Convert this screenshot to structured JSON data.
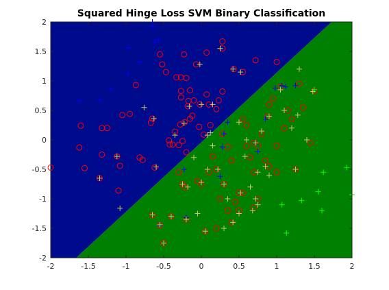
{
  "chart_data": {
    "type": "scatter",
    "title": "Squared Hinge Loss SVM Binary Classification",
    "xlabel": "",
    "ylabel": "",
    "xlim": [
      -2,
      2
    ],
    "ylim": [
      -2,
      2
    ],
    "x_ticks": [
      "-2",
      "-1.5",
      "-1",
      "-0.5",
      "0",
      "0.5",
      "1",
      "1.5",
      "2"
    ],
    "y_ticks": [
      "-2",
      "-1.5",
      "-1",
      "-0.5",
      "0",
      "0.5",
      "1",
      "1.5",
      "2"
    ],
    "grid": false,
    "decision_boundary": {
      "points": [
        [
          -1.66,
          -2
        ],
        [
          1.73,
          2
        ]
      ]
    },
    "region_colors": {
      "upper_left": "#000a8c",
      "lower_right": "#008000"
    },
    "marker_colors": {
      "circle": "#ff0000",
      "plus_class_a": "#0000ff",
      "plus_class_b": "#00ff00",
      "plus_class_b_misclassified": "#c8c864"
    },
    "series": [
      {
        "marker": "circle",
        "points": [
          [
            -2.0,
            -0.47
          ],
          [
            -1.6,
            0.24
          ],
          [
            -1.62,
            -0.13
          ],
          [
            -1.55,
            -0.48
          ],
          [
            -1.35,
            -0.65
          ],
          [
            -1.32,
            0.2
          ],
          [
            -1.32,
            -0.25
          ],
          [
            -1.25,
            0.2
          ],
          [
            -1.12,
            -0.28
          ],
          [
            -1.1,
            -0.86
          ],
          [
            -1.08,
            -0.44
          ],
          [
            -1.05,
            0.42
          ],
          [
            -0.95,
            0.44
          ],
          [
            -0.87,
            0.93
          ],
          [
            -0.82,
            -0.3
          ],
          [
            -0.78,
            -0.34
          ],
          [
            -0.67,
            0.29
          ],
          [
            -0.65,
            0.36
          ],
          [
            -0.62,
            -0.47
          ],
          [
            -0.55,
            1.45
          ],
          [
            -0.52,
            1.28
          ],
          [
            -0.47,
            1.15
          ],
          [
            -0.43,
            -0.01
          ],
          [
            -0.42,
            -0.08
          ],
          [
            -0.38,
            -0.08
          ],
          [
            -0.33,
            1.06
          ],
          [
            -0.35,
            0.14
          ],
          [
            -0.3,
            -0.09
          ],
          [
            -0.28,
            0.26
          ],
          [
            -0.27,
            0.83
          ],
          [
            -0.27,
            1.06
          ],
          [
            -0.27,
            0.72
          ],
          [
            -0.25,
            -0.02
          ],
          [
            -0.23,
            1.45
          ],
          [
            -0.22,
            0.3
          ],
          [
            -0.2,
            -0.21
          ],
          [
            -0.2,
            1.05
          ],
          [
            -0.18,
            0.57
          ],
          [
            -0.17,
            0.66
          ],
          [
            -0.15,
            0.84
          ],
          [
            -0.15,
            0.36
          ],
          [
            -0.12,
            0.41
          ],
          [
            -0.1,
            0.67
          ],
          [
            -0.07,
            1.28
          ],
          [
            -0.03,
            0.22
          ],
          [
            -0.02,
            0.6
          ],
          [
            0.03,
            0.09
          ],
          [
            0.07,
            0.77
          ],
          [
            0.07,
            1.48
          ],
          [
            0.1,
            0.6
          ],
          [
            0.12,
            0.25
          ],
          [
            0.2,
            0.52
          ],
          [
            0.23,
            0.67
          ],
          [
            0.28,
            1.55
          ],
          [
            0.28,
            1.67
          ],
          [
            0.28,
            0.82
          ],
          [
            0.28,
            0.1
          ],
          [
            0.43,
            1.2
          ],
          [
            0.55,
            1.15
          ],
          [
            0.72,
            1.35
          ],
          [
            1.0,
            1.32
          ],
          [
            0.55,
            0.35
          ],
          [
            0.6,
            -0.1
          ],
          [
            0.7,
            -0.05
          ],
          [
            0.75,
            -0.1
          ],
          [
            0.8,
            0.1
          ],
          [
            0.88,
            0.4
          ],
          [
            0.95,
            0.7
          ],
          [
            1.05,
            0.9
          ],
          [
            1.15,
            0.5
          ],
          [
            1.3,
            0.95
          ],
          [
            1.5,
            0.83
          ],
          [
            1.45,
            -0.05
          ],
          [
            1.1,
            0.2
          ],
          [
            1.0,
            -0.1
          ],
          [
            0.9,
            -0.45
          ],
          [
            1.25,
            -0.5
          ],
          [
            0.7,
            -0.55
          ],
          [
            0.5,
            -0.9
          ],
          [
            0.3,
            -0.75
          ],
          [
            0.1,
            -0.55
          ],
          [
            -0.05,
            -0.7
          ],
          [
            -0.22,
            -0.8
          ],
          [
            -0.55,
            -1.45
          ],
          [
            -0.5,
            -1.75
          ],
          [
            -0.2,
            -1.35
          ],
          [
            0.05,
            -1.55
          ],
          [
            0.2,
            -1.5
          ],
          [
            0.4,
            -1.4
          ],
          [
            0.5,
            -1.2
          ],
          [
            0.7,
            -1.15
          ],
          [
            0.75,
            -1.0
          ],
          [
            0.35,
            -1.2
          ],
          [
            0.2,
            -0.5
          ],
          [
            0.4,
            -0.35
          ],
          [
            0.65,
            -0.3
          ],
          [
            0.85,
            -0.35
          ],
          [
            1.0,
            -0.55
          ],
          [
            0.55,
            -0.9
          ],
          [
            0.45,
            -1.05
          ],
          [
            0.0,
            -0.75
          ],
          [
            -0.25,
            -0.75
          ],
          [
            0.25,
            -1.0
          ],
          [
            0.35,
            -0.12
          ],
          [
            0.15,
            -0.28
          ],
          [
            0.9,
            0.6
          ],
          [
            1.2,
            0.35
          ],
          [
            1.35,
            0.55
          ],
          [
            0.6,
            0.25
          ],
          [
            -0.4,
            -1.3
          ],
          [
            -0.65,
            -1.28
          ],
          [
            -0.3,
            -0.55
          ]
        ]
      },
      {
        "marker": "plus",
        "name_color": "plus_class_a",
        "points": [
          [
            -1.62,
            0.66
          ],
          [
            -1.35,
            0.68
          ],
          [
            -1.2,
            0.86
          ],
          [
            -0.97,
            1.56
          ],
          [
            -0.98,
            1.12
          ],
          [
            -0.82,
            1.32
          ],
          [
            -0.62,
            1.66
          ],
          [
            -0.65,
            1.93
          ],
          [
            -0.65,
            2.0
          ],
          [
            -0.57,
            1.7
          ],
          [
            -0.2,
            -1.32
          ],
          [
            -0.23,
            -0.5
          ],
          [
            0.25,
            -0.62
          ],
          [
            0.28,
            -0.12
          ],
          [
            0.3,
            0.1
          ],
          [
            0.35,
            0.3
          ],
          [
            0.85,
            0.35
          ],
          [
            0.98,
            0.88
          ],
          [
            1.25,
            0.92
          ],
          [
            1.07,
            0.92
          ],
          [
            0.72,
            -0.05
          ],
          [
            0.75,
            -0.2
          ],
          [
            1.12,
            0.9
          ],
          [
            -0.55,
            -1.45
          ]
        ]
      },
      {
        "marker": "plus",
        "name_color": "plus_class_b",
        "points": [
          [
            1.93,
            -0.47
          ],
          [
            2.0,
            -0.93
          ],
          [
            1.62,
            -0.55
          ],
          [
            1.55,
            -0.88
          ],
          [
            1.6,
            -1.2
          ],
          [
            1.33,
            -1.03
          ],
          [
            1.07,
            -1.1
          ],
          [
            1.13,
            -1.58
          ],
          [
            1.5,
            0.85
          ]
        ]
      },
      {
        "marker": "plus",
        "name_color": "plus_class_b_misclassified",
        "points": [
          [
            -1.35,
            -0.65
          ],
          [
            -1.12,
            -0.28
          ],
          [
            -1.08,
            -1.16
          ],
          [
            -0.76,
            0.55
          ],
          [
            -0.63,
            0.36
          ],
          [
            -0.6,
            -0.46
          ],
          [
            -0.35,
            0.08
          ],
          [
            -0.23,
            0.28
          ],
          [
            -0.16,
            0.57
          ],
          [
            -0.02,
            1.28
          ],
          [
            0.0,
            0.6
          ],
          [
            0.08,
            0.08
          ],
          [
            0.12,
            0.12
          ],
          [
            0.15,
            0.6
          ],
          [
            0.25,
            1.55
          ],
          [
            0.42,
            1.2
          ],
          [
            0.52,
            1.15
          ],
          [
            0.5,
            0.3
          ],
          [
            0.6,
            0.0
          ],
          [
            0.58,
            -0.28
          ],
          [
            0.72,
            -0.05
          ],
          [
            0.8,
            0.15
          ],
          [
            0.9,
            0.4
          ],
          [
            1.05,
            0.85
          ],
          [
            1.1,
            0.5
          ],
          [
            1.2,
            0.2
          ],
          [
            1.28,
            0.42
          ],
          [
            1.3,
            1.2
          ],
          [
            1.4,
            0.0
          ],
          [
            1.48,
            0.82
          ],
          [
            0.85,
            -0.45
          ],
          [
            0.9,
            -0.6
          ],
          [
            0.75,
            -0.55
          ],
          [
            1.25,
            -0.5
          ],
          [
            0.65,
            -0.8
          ],
          [
            0.52,
            -0.9
          ],
          [
            0.72,
            -1.0
          ],
          [
            0.75,
            -1.1
          ],
          [
            0.68,
            -1.2
          ],
          [
            0.5,
            -1.25
          ],
          [
            0.42,
            -1.4
          ],
          [
            0.3,
            -1.5
          ],
          [
            0.05,
            -1.55
          ],
          [
            -0.05,
            -1.25
          ],
          [
            -0.2,
            -1.35
          ],
          [
            -0.5,
            -1.75
          ],
          [
            -0.65,
            -1.27
          ],
          [
            -0.55,
            -1.44
          ],
          [
            -0.4,
            -1.3
          ],
          [
            -0.25,
            -0.75
          ],
          [
            -0.18,
            -0.8
          ],
          [
            0.0,
            -0.72
          ],
          [
            0.08,
            -0.5
          ],
          [
            0.22,
            -0.5
          ],
          [
            0.35,
            -1.0
          ],
          [
            0.3,
            -0.75
          ],
          [
            -0.1,
            -0.3
          ],
          [
            0.15,
            -0.1
          ]
        ]
      }
    ]
  }
}
